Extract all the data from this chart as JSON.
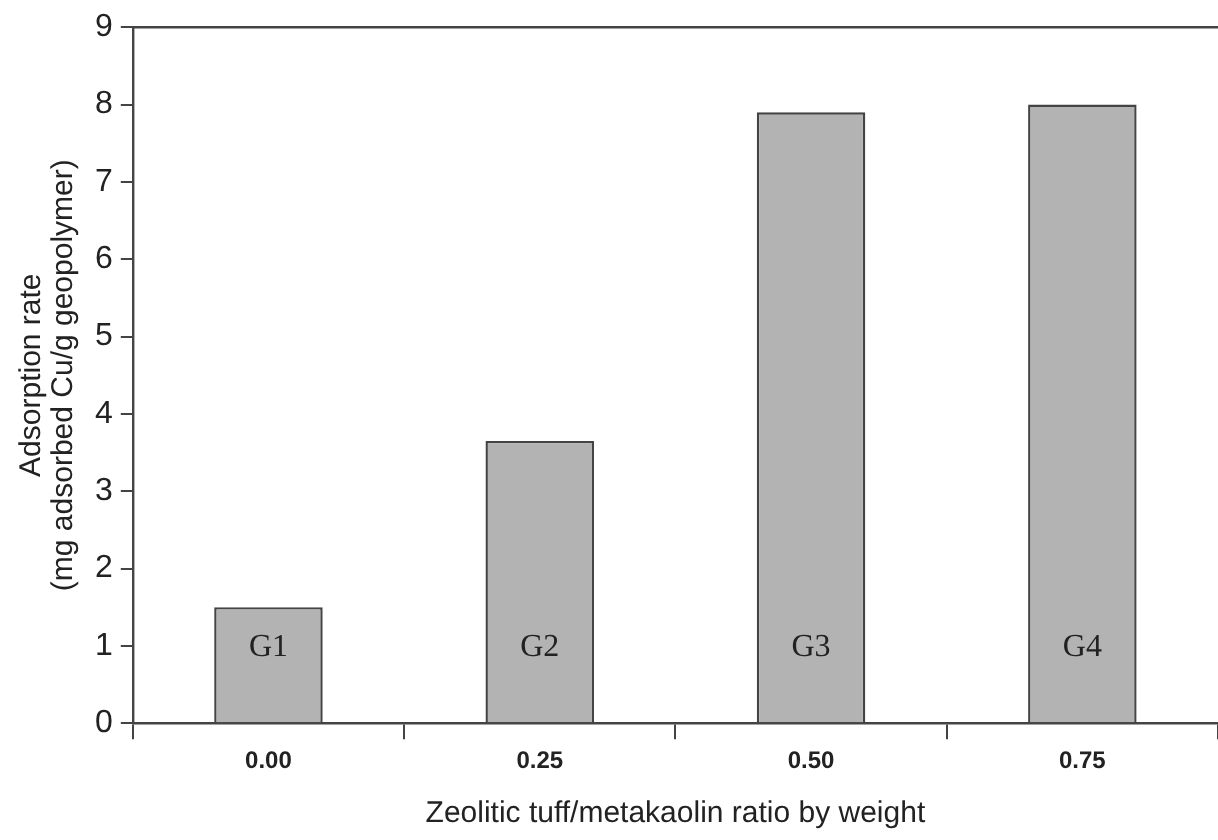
{
  "chart_data": {
    "type": "bar",
    "xlabel": "Zeolitic tuff/metakaolin ratio by weight",
    "ylabel": "Adsorption rate\n(mg adsorbed Cu/g geopolymer)",
    "categories": [
      "0.00",
      "0.25",
      "0.50",
      "0.75"
    ],
    "values": [
      1.5,
      3.65,
      7.9,
      8.0
    ],
    "color": "#b3b3b3",
    "ylim": [
      0,
      9
    ],
    "yticks": [
      0,
      1,
      2,
      3,
      4,
      5,
      6,
      7,
      8,
      9
    ],
    "annotations": [
      "G1",
      "G2",
      "G3",
      "G4"
    ]
  }
}
